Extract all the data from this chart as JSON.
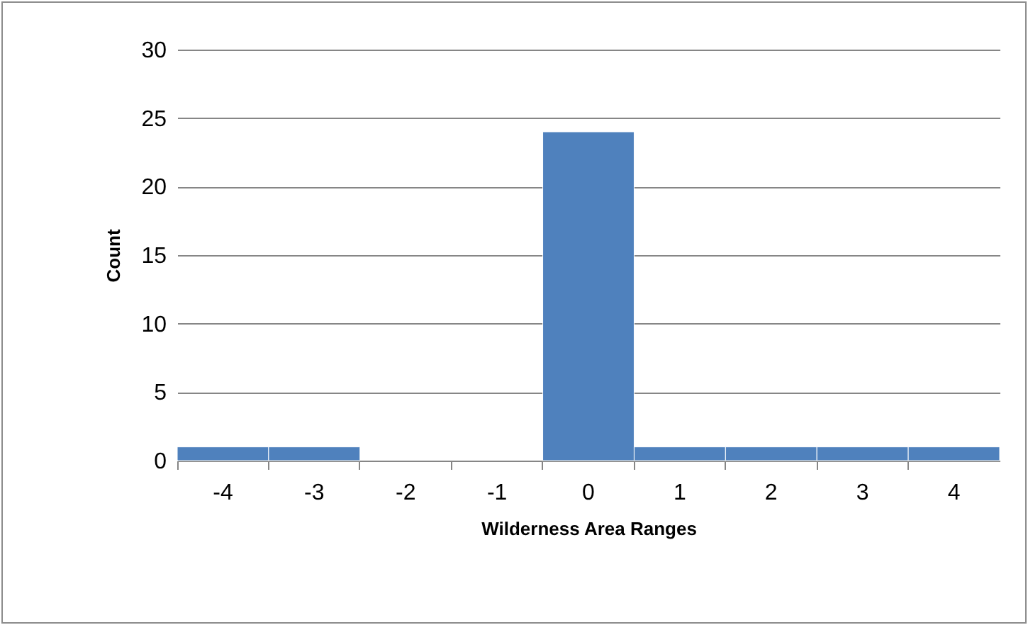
{
  "chart_data": {
    "type": "bar",
    "xlabel": "Wilderness Area Ranges",
    "ylabel": "Count",
    "categories": [
      "-4",
      "-3",
      "-2",
      "-1",
      "0",
      "1",
      "2",
      "3",
      "4"
    ],
    "series": [
      {
        "color": "#4f81bd",
        "values": [
          1,
          1,
          0,
          0,
          24,
          1,
          1,
          1,
          1
        ]
      }
    ],
    "ylim": [
      0,
      30
    ],
    "yticks": [
      0,
      5,
      10,
      15,
      20,
      25,
      30
    ],
    "grid": "y",
    "legend": false
  }
}
